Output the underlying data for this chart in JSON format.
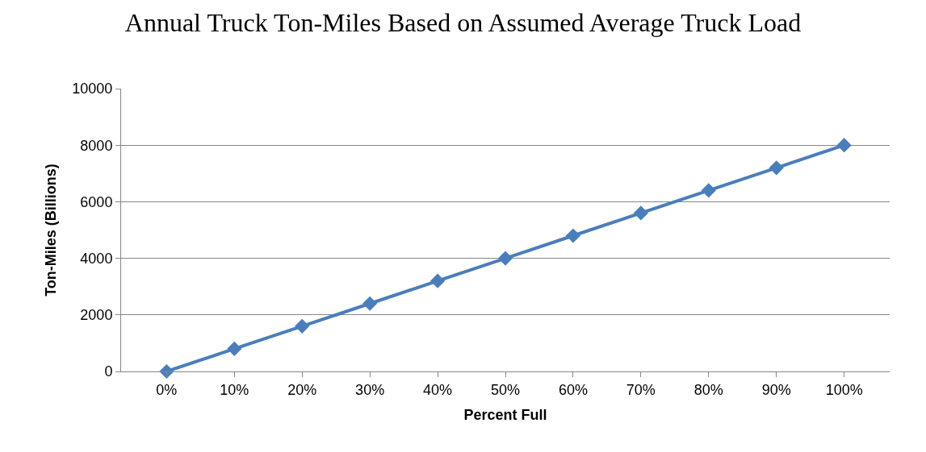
{
  "chart_data": {
    "type": "line",
    "title": "Annual Truck Ton-Miles Based on Assumed Average Truck Load",
    "xlabel": "Percent Full",
    "ylabel": "Ton-Miles (Billions)",
    "categories": [
      "0%",
      "10%",
      "20%",
      "30%",
      "40%",
      "50%",
      "60%",
      "70%",
      "80%",
      "90%",
      "100%"
    ],
    "series": [
      {
        "color": "#4a7ebb",
        "values": [
          0,
          800,
          1600,
          2400,
          3200,
          4000,
          4800,
          5600,
          6400,
          7200,
          8000
        ]
      }
    ],
    "ylim": [
      0,
      10000
    ],
    "yticks": [
      0,
      2000,
      4000,
      6000,
      8000,
      10000
    ],
    "grid": "y",
    "marker": "diamond",
    "line_style": "solid"
  }
}
